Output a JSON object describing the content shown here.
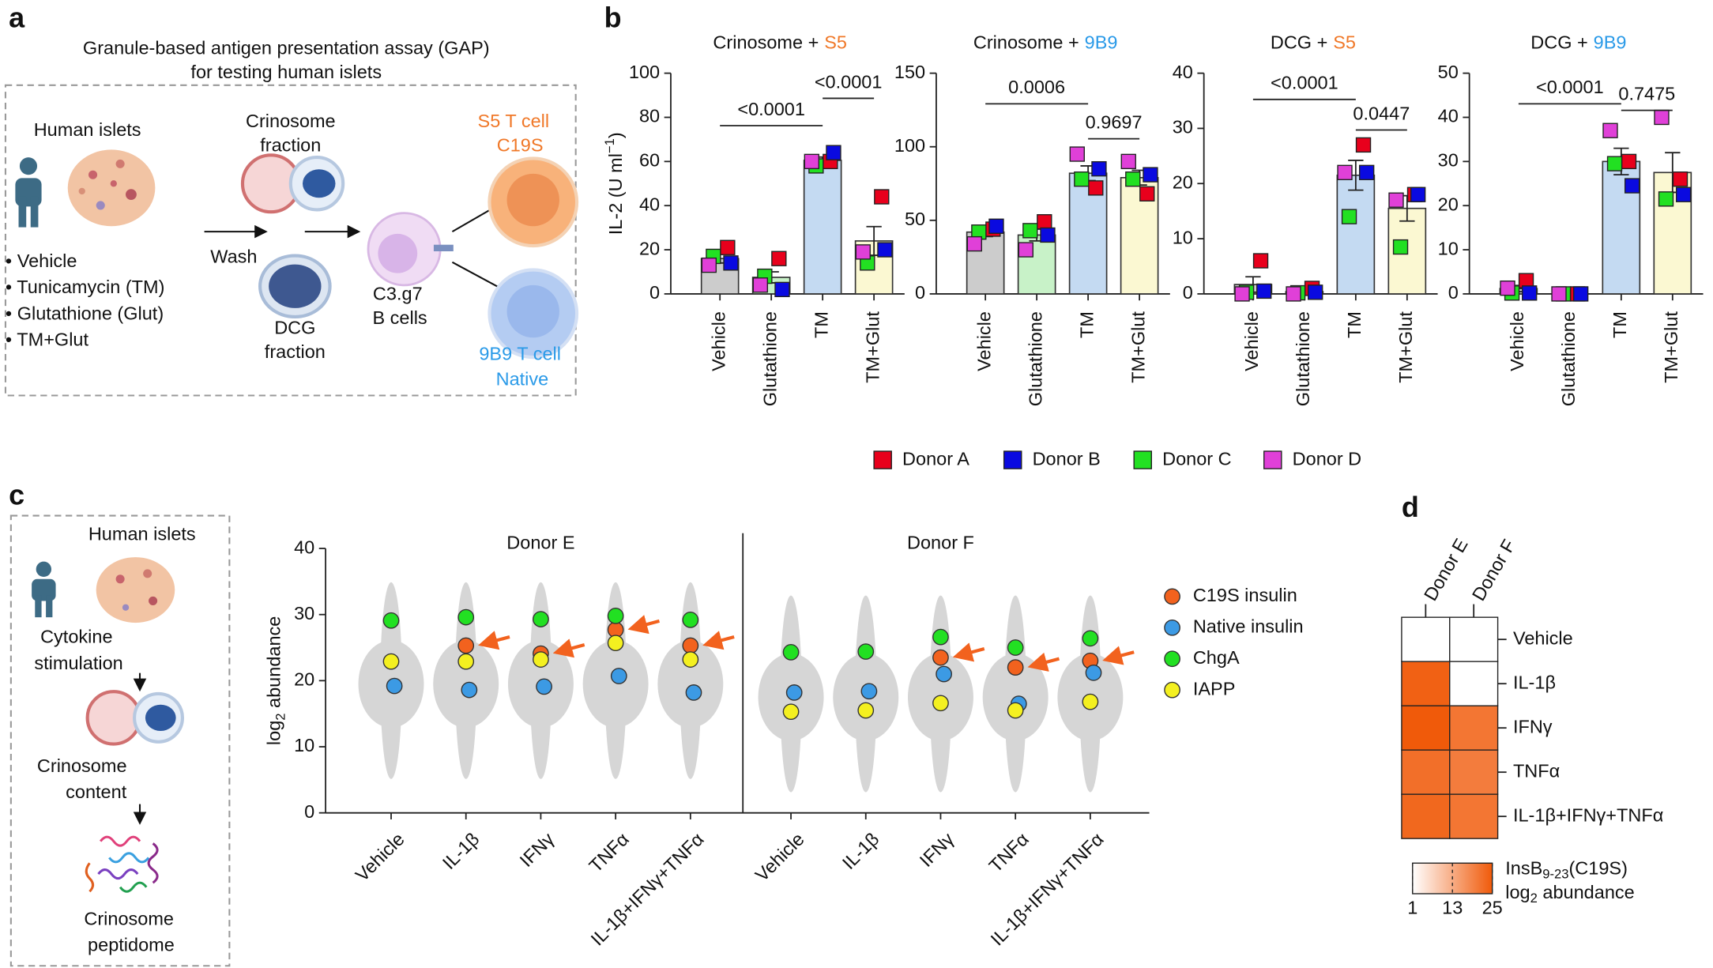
{
  "panel_labels": [
    "a",
    "b",
    "c",
    "d"
  ],
  "panel_a": {
    "title": [
      "Granule-based antigen presentation assay (GAP)",
      "for testing human islets"
    ],
    "islets": "Human islets",
    "treatments": [
      "• Vehicle",
      "• Tunicamycin (TM)",
      "• Glutathione (Glut)",
      "• TM+Glut"
    ],
    "wash": "Wash",
    "crinosome": [
      "Crinosome",
      "fraction"
    ],
    "dcg": [
      "DCG",
      "fraction"
    ],
    "b_cells": [
      "C3.g7",
      "B cells"
    ],
    "s5": [
      "S5 T cell",
      "C19S"
    ],
    "b9": [
      "9B9 T cell",
      "Native"
    ]
  },
  "panel_c_scheme": {
    "islets": "Human islets",
    "stimulation": [
      "Cytokine",
      "stimulation"
    ],
    "content": [
      "Crinosome",
      "content"
    ],
    "peptidome": [
      "Crinosome",
      "peptidome"
    ]
  },
  "donor_legend": [
    {
      "name": "Donor A",
      "color": "#e8001c"
    },
    {
      "name": "Donor B",
      "color": "#0a0ae0"
    },
    {
      "name": "Donor C",
      "color": "#22e022"
    },
    {
      "name": "Donor D",
      "color": "#e040d8"
    }
  ],
  "chart_data": [
    {
      "type": "bar",
      "title": "Crinosome +",
      "title_highlight": "S5",
      "title_highlight_color": "#f07828",
      "ylabel": [
        "IL-2 (U ml",
        "−1",
        ")"
      ],
      "categories": [
        "Vehicle",
        "Glutathione",
        "TM",
        "TM+Glut"
      ],
      "bar_colors": [
        "#cccccc",
        "#c8f2c8",
        "#c4daf2",
        "#fbf8d2"
      ],
      "values": [
        16,
        7.5,
        60.5,
        24
      ],
      "errors": [
        2,
        2.5,
        1.5,
        6.5
      ],
      "series": [
        {
          "values": [
            21,
            16,
            60,
            44
          ]
        },
        {
          "values": [
            14,
            2,
            64,
            20
          ]
        },
        {
          "values": [
            17,
            8,
            58,
            14
          ]
        },
        {
          "values": [
            13,
            4,
            60,
            19
          ]
        }
      ],
      "ylim": [
        0,
        100
      ],
      "yticks": [
        0,
        20,
        40,
        60,
        80,
        100
      ],
      "comparisons": [
        "<0.0001",
        "<0.0001"
      ]
    },
    {
      "type": "bar",
      "title": "Crinosome +",
      "title_highlight": "9B9",
      "title_highlight_color": "#2a9ae8",
      "categories": [
        "Vehicle",
        "Glutathione",
        "TM",
        "TM+Glut"
      ],
      "bar_colors": [
        "#cccccc",
        "#c8f2c8",
        "#c4daf2",
        "#fbf8d2"
      ],
      "values": [
        42,
        40,
        82,
        79
      ],
      "errors": [
        3,
        4,
        5,
        5
      ],
      "series": [
        {
          "values": [
            44,
            49,
            72,
            68
          ]
        },
        {
          "values": [
            46,
            40,
            85,
            81
          ]
        },
        {
          "values": [
            42,
            43,
            78,
            78
          ]
        },
        {
          "values": [
            34,
            30,
            95,
            90
          ]
        }
      ],
      "ylim": [
        0,
        150
      ],
      "yticks": [
        0,
        50,
        100,
        150
      ],
      "comparisons": [
        "0.0006",
        "0.9697"
      ]
    },
    {
      "type": "bar",
      "title": "DCG +",
      "title_highlight": "S5",
      "title_highlight_color": "#f07828",
      "categories": [
        "Vehicle",
        "Glutathione",
        "TM",
        "TM+Glut"
      ],
      "bar_colors": [
        "#cccccc",
        "#c8f2c8",
        "#c4daf2",
        "#fbf8d2"
      ],
      "values": [
        1.7,
        0.4,
        21.5,
        15.5
      ],
      "errors": [
        1.4,
        0.3,
        2.7,
        2.3
      ],
      "series": [
        {
          "values": [
            6,
            1,
            27,
            18
          ]
        },
        {
          "values": [
            0.5,
            0.3,
            22,
            18
          ]
        },
        {
          "values": [
            0.3,
            0.2,
            14,
            8.5
          ]
        },
        {
          "values": [
            0,
            0,
            22,
            17
          ]
        }
      ],
      "ylim": [
        0,
        40
      ],
      "yticks": [
        0,
        10,
        20,
        30,
        40
      ],
      "comparisons": [
        "<0.0001",
        "0.0447"
      ]
    },
    {
      "type": "bar",
      "title": "DCG +",
      "title_highlight": "9B9",
      "title_highlight_color": "#2a9ae8",
      "categories": [
        "Vehicle",
        "Glutathione",
        "TM",
        "TM+Glut"
      ],
      "bar_colors": [
        "#cccccc",
        "#c8f2c8",
        "#c4daf2",
        "#fbf8d2"
      ],
      "values": [
        1.2,
        0,
        30,
        27.5
      ],
      "errors": [
        0.7,
        0,
        3,
        4.5
      ],
      "series": [
        {
          "values": [
            3,
            0,
            30,
            26
          ]
        },
        {
          "values": [
            0.2,
            0,
            24.5,
            22.5
          ]
        },
        {
          "values": [
            0.2,
            0,
            29.5,
            21.5
          ]
        },
        {
          "values": [
            1.3,
            0,
            37,
            40
          ]
        }
      ],
      "ylim": [
        0,
        50
      ],
      "yticks": [
        0,
        10,
        20,
        30,
        40,
        50
      ],
      "comparisons": [
        "<0.0001",
        "0.7475"
      ]
    },
    {
      "type": "scatter",
      "groups": [
        "Donor E",
        "Donor F"
      ],
      "ylabel": [
        "log",
        "2",
        " abundance"
      ],
      "categories": [
        "Vehicle",
        "IL-1β",
        "IFNγ",
        "TNFα",
        "IL-1β+IFNγ+TNFα"
      ],
      "ylim": [
        0,
        40
      ],
      "yticks": [
        0,
        10,
        20,
        30,
        40
      ],
      "series": [
        {
          "name": "C19S insulin",
          "color": "#f2621e",
          "values": [
            [
              null,
              25.3,
              24.1,
              27.7,
              25.3
            ],
            [
              null,
              null,
              23.5,
              22.0,
              23.0
            ]
          ]
        },
        {
          "name": "Native insulin",
          "color": "#3c9ae4",
          "values": [
            [
              19.2,
              18.6,
              19.1,
              20.7,
              18.2
            ],
            [
              18.2,
              18.4,
              21.0,
              16.5,
              21.2
            ]
          ]
        },
        {
          "name": "ChgA",
          "color": "#22e022",
          "values": [
            [
              29.1,
              29.6,
              29.3,
              29.8,
              29.2
            ],
            [
              24.3,
              24.4,
              26.6,
              25.0,
              26.4
            ]
          ]
        },
        {
          "name": "IAPP",
          "color": "#f4f020",
          "values": [
            [
              22.9,
              22.9,
              23.2,
              25.7,
              23.2
            ],
            [
              15.3,
              15.5,
              16.6,
              15.5,
              16.8
            ]
          ]
        }
      ]
    },
    {
      "type": "heatmap",
      "columns": [
        "Donor E",
        "Donor F"
      ],
      "rows": [
        "Vehicle",
        "IL-1β",
        "IFNγ",
        "TNFα",
        "IL-1β+IFNγ+TNFα"
      ],
      "values": [
        [
          1,
          1
        ],
        [
          24,
          1
        ],
        [
          25,
          21
        ],
        [
          22,
          20
        ],
        [
          23,
          21
        ]
      ],
      "clim": [
        1,
        25
      ],
      "cticks": [
        1,
        13,
        25
      ],
      "colors": [
        "#ffffff",
        "#f05a0a"
      ],
      "colorbar_label": [
        "InsB",
        "9-23",
        "(C19S)"
      ],
      "colorbar_label2": [
        "log",
        "2",
        " abundance"
      ]
    }
  ]
}
